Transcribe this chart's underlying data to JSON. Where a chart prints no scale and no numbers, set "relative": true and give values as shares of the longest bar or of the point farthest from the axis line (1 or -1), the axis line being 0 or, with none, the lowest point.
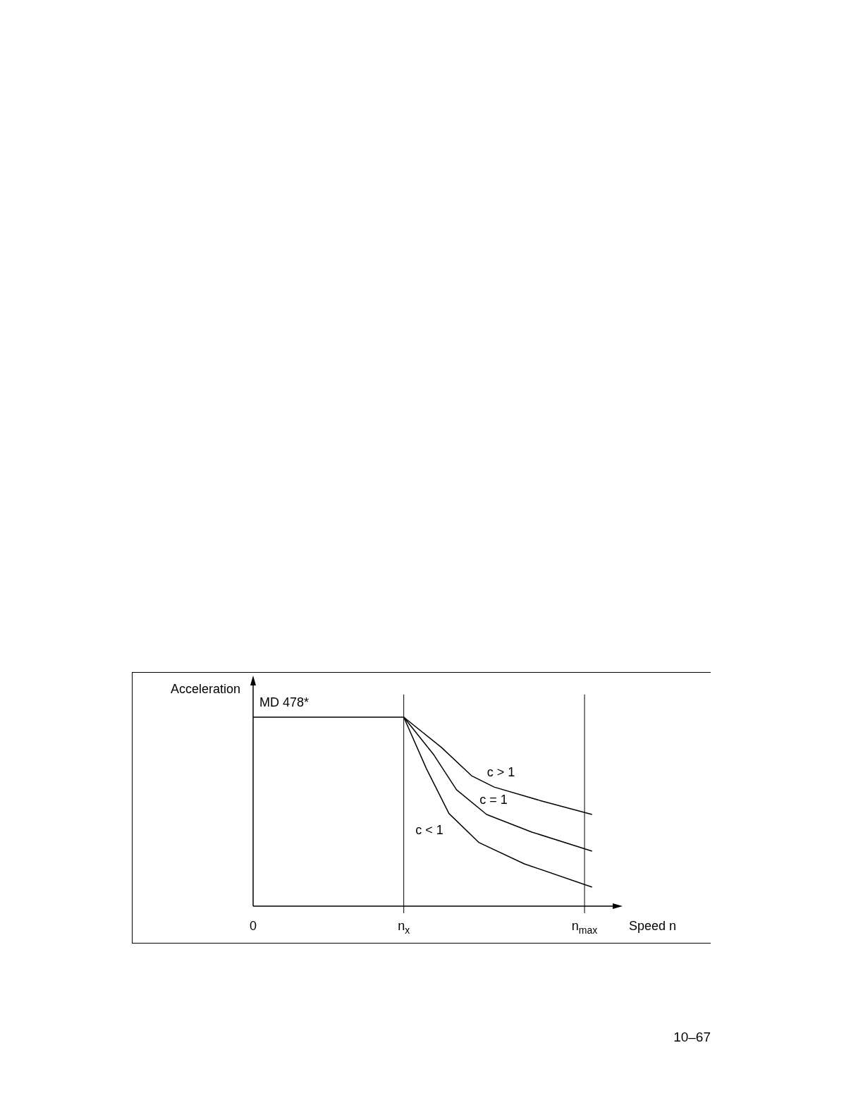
{
  "chart_data": {
    "type": "line",
    "relative": true,
    "xlabel": "Speed n",
    "ylabel": "Acceleration",
    "categories": [
      "0",
      null,
      null,
      null,
      null,
      null,
      null,
      null,
      null,
      null,
      null,
      null,
      null,
      null,
      null,
      null,
      null,
      null,
      null,
      null,
      "n$_{x}$",
      null,
      null,
      null,
      null,
      null,
      null,
      null,
      null,
      null,
      null,
      null,
      null,
      null,
      null,
      null,
      null,
      null,
      null,
      null,
      null,
      null,
      null,
      null,
      "n$_{max}$",
      null
    ],
    "series": [
      {
        "color": "#000000",
        "values": [
          1,
          null,
          null,
          null,
          null,
          null,
          null,
          null,
          null,
          null,
          null,
          null,
          null,
          null,
          null,
          null,
          null,
          null,
          null,
          null,
          1,
          null,
          null,
          null,
          null,
          null,
          null,
          null,
          null,
          null,
          null,
          null,
          null,
          null,
          null,
          null,
          null,
          null,
          null,
          null,
          null,
          null,
          null,
          null,
          null,
          null
        ]
      },
      {
        "name": "c > 1",
        "color": "#000000",
        "values": [
          null,
          null,
          null,
          null,
          null,
          null,
          null,
          null,
          null,
          null,
          null,
          null,
          null,
          null,
          null,
          null,
          null,
          null,
          null,
          null,
          1,
          null,
          null,
          null,
          null,
          0.84,
          null,
          null,
          null,
          0.69,
          null,
          null,
          0.63,
          null,
          null,
          null,
          null,
          null,
          0.56,
          null,
          null,
          null,
          null,
          null,
          null,
          0.485
        ]
      },
      {
        "name": "c = 1",
        "color": "#000000",
        "values": [
          null,
          null,
          null,
          null,
          null,
          null,
          null,
          null,
          null,
          null,
          null,
          null,
          null,
          null,
          null,
          null,
          null,
          null,
          null,
          null,
          1,
          null,
          null,
          null,
          0.8,
          null,
          null,
          0.616,
          null,
          null,
          null,
          0.485,
          null,
          null,
          null,
          null,
          null,
          0.392,
          null,
          null,
          null,
          null,
          null,
          null,
          null,
          0.291
        ]
      },
      {
        "name": "c < 1",
        "color": "#000000",
        "values": [
          null,
          null,
          null,
          null,
          null,
          null,
          null,
          null,
          null,
          null,
          null,
          null,
          null,
          null,
          null,
          null,
          null,
          null,
          null,
          null,
          1,
          null,
          null,
          0.728,
          null,
          null,
          0.49,
          null,
          null,
          null,
          0.336,
          null,
          null,
          null,
          null,
          null,
          0.224,
          null,
          null,
          null,
          null,
          null,
          null,
          null,
          null,
          0.101
        ]
      }
    ],
    "ref_lines": [
      {
        "axis": "x",
        "value": "n$_{x}$",
        "color": "#000000"
      },
      {
        "axis": "x",
        "value": "n$_{max}$",
        "color": "#000000"
      }
    ],
    "annotations": [
      {
        "text": "MD 478*",
        "y": 1
      },
      "10–67"
    ],
    "legend": false,
    "marker": "none",
    "line_style": "solid"
  }
}
